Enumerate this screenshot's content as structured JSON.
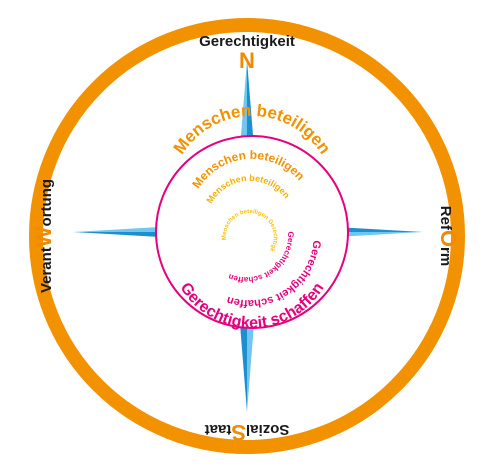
{
  "colors": {
    "ring": "#f39200",
    "inner_circle": "#e6007e",
    "star_light": "#6fc7f0",
    "star_dark": "#1d8fcf",
    "accent_letter": "#f08a00",
    "magenta": "#e6007e",
    "orange": "#f39200",
    "yellow": "#fcc200"
  },
  "directions": {
    "north": {
      "before": "Gerechtigkeit",
      "letter": "N",
      "full_label": "Gerechtigkeit"
    },
    "east": {
      "before": "Ref",
      "letter": "O",
      "after": "rm"
    },
    "south": {
      "before": "Sozial",
      "letter": "S",
      "after": "taat"
    },
    "west": {
      "before": "Verant",
      "letter": "W",
      "after": "ortung"
    }
  },
  "spiral": {
    "outer_top": "Menschen beteiligen",
    "mid_top": "Menschen beteiligen",
    "inner_top": "Menschen beteiligen",
    "core": "Menschen beteiligen Gerechtigkeit schaffen",
    "inner_bottom": "Gerechtigkeit schaffen",
    "mid_bottom": "Gerechtigkeit schaffen",
    "outer_bottom": "Gerechtigkeit schaffen"
  }
}
